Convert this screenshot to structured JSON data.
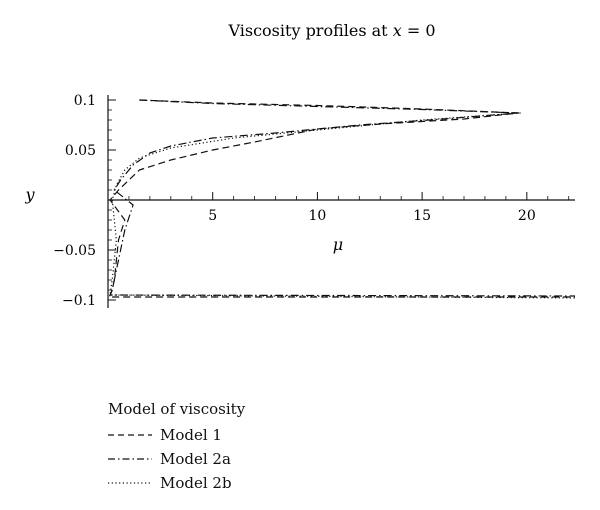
{
  "chart_data": {
    "type": "line",
    "title": "Viscosity profiles at x = 0",
    "title_prefix": "Viscosity profiles at ",
    "title_var": "x",
    "title_suffix": " = 0",
    "xlabel": "μ",
    "ylabel": "y",
    "xlim": [
      0,
      22.3
    ],
    "ylim": [
      -0.1,
      0.105
    ],
    "xticks": [
      5,
      10,
      15,
      20
    ],
    "xtick_labels": [
      "5",
      "10",
      "15",
      "20"
    ],
    "yticks": [
      0.1,
      0.05,
      -0.05,
      -0.1
    ],
    "ytick_labels": [
      "0.1",
      "0.05",
      "−0.05",
      "−0.1"
    ],
    "grid": false,
    "legend_position": "bottom-left",
    "series": [
      {
        "name": "Model 1",
        "dash": "dashed",
        "x": [
          1.5,
          5,
          10,
          15,
          19.6,
          17,
          13,
          10,
          7,
          5,
          3,
          1.5,
          1.0,
          0.5,
          0.1,
          0.8,
          0.5,
          0.4,
          0.3,
          0.2,
          0.1,
          0.05,
          22.3
        ],
        "y": [
          0.1,
          0.097,
          0.0945,
          0.091,
          0.087,
          0.081,
          0.076,
          0.071,
          0.058,
          0.05,
          0.04,
          0.03,
          0.02,
          0.01,
          0.0,
          -0.02,
          -0.04,
          -0.06,
          -0.08,
          -0.09,
          -0.095,
          -0.097,
          -0.097
        ]
      },
      {
        "name": "Model 2a",
        "dash": "dash-dot",
        "x": [
          1.5,
          5,
          10,
          15,
          19.6,
          16,
          12,
          8,
          5,
          3,
          2,
          1.2,
          0.6,
          0.3,
          1.2,
          0.8,
          0.6,
          0.4,
          0.2,
          0.1,
          22.3
        ],
        "y": [
          0.1,
          0.0965,
          0.0935,
          0.0905,
          0.087,
          0.081,
          0.075,
          0.067,
          0.062,
          0.054,
          0.047,
          0.035,
          0.02,
          0.01,
          -0.005,
          -0.03,
          -0.05,
          -0.07,
          -0.09,
          -0.095,
          -0.096
        ]
      },
      {
        "name": "Model 2b",
        "dash": "dotted",
        "x": [
          19.7,
          15,
          10,
          6,
          3,
          1.5,
          0.8,
          0.4,
          0.2,
          0.3,
          0.4,
          0.3,
          0.2,
          0.1,
          22.3
        ],
        "y": [
          0.087,
          0.08,
          0.07,
          0.062,
          0.052,
          0.042,
          0.03,
          0.015,
          0.0,
          -0.02,
          -0.04,
          -0.06,
          -0.08,
          -0.095,
          -0.098
        ]
      }
    ]
  },
  "legend": {
    "title": "Model of viscosity",
    "items": [
      "Model 1",
      "Model 2a",
      "Model 2b"
    ]
  }
}
